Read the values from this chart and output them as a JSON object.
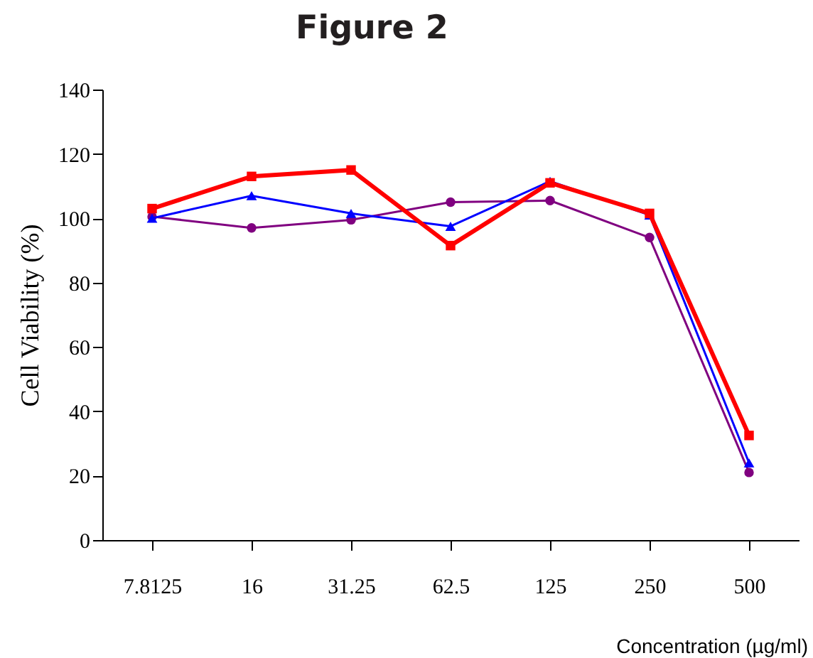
{
  "chart_data": {
    "type": "line",
    "title": "Figure 2",
    "xlabel": "Concentration (µg/ml)",
    "ylabel": "Cell Viability (%)",
    "categories": [
      "7.8125",
      "16",
      "31.25",
      "62.5",
      "125",
      "250",
      "500"
    ],
    "ylim": [
      0,
      140
    ],
    "yticks": [
      0,
      20,
      40,
      60,
      80,
      100,
      120,
      140
    ],
    "series": [
      {
        "color": "#800080",
        "marker": "circle",
        "values": [
          100.5,
          97,
          99.5,
          105,
          105.5,
          94,
          21
        ]
      },
      {
        "color": "#0000ff",
        "marker": "triangle",
        "values": [
          100,
          107,
          101.5,
          97.5,
          111.5,
          101,
          24
        ]
      },
      {
        "color": "#ff0000",
        "marker": "square",
        "values": [
          103,
          113,
          115,
          91.5,
          111,
          101.5,
          32.5
        ]
      }
    ]
  }
}
